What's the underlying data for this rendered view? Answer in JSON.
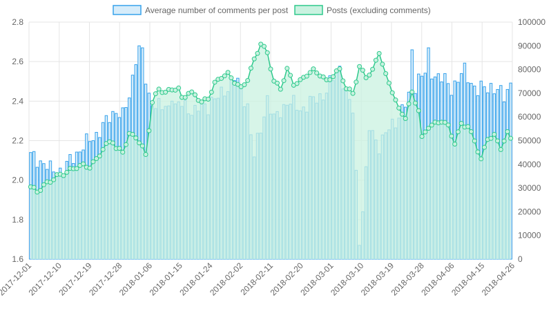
{
  "chart_data": {
    "type": "bar",
    "legend": {
      "placement": "top-center",
      "entries": [
        "Average number of comments per post",
        "Posts (excluding comments)"
      ]
    },
    "colors": {
      "bar_fill": "#d6ecfa",
      "bar_stroke": "#36a2eb",
      "line_stroke": "#2ec98c",
      "line_fill": "#c9f2e0",
      "grid": "#e5e5e5"
    },
    "x_tick_labels": [
      "2017-12-01",
      "2017-12-10",
      "2017-12-19",
      "2017-12-28",
      "2018-01-06",
      "2018-01-15",
      "2018-01-24",
      "2018-02-02",
      "2018-02-11",
      "2018-02-20",
      "2018-03-01",
      "2018-03-10",
      "2018-03-19",
      "2018-03-28",
      "2018-04-06",
      "2018-04-15",
      "2018-04-26"
    ],
    "y_left": {
      "ylim": [
        1.6,
        2.8
      ],
      "ticks": [
        "1.6",
        "1.8",
        "2.0",
        "2.2",
        "2.4",
        "2.6",
        "2.8"
      ]
    },
    "y_right": {
      "ylim": [
        0,
        100000
      ],
      "ticks": [
        "0",
        "10000",
        "20000",
        "30000",
        "40000",
        "50000",
        "60000",
        "70000",
        "80000",
        "90000",
        "100000"
      ]
    },
    "grid": true,
    "n_days": 147,
    "avg_anchors": [
      [
        0,
        2.12
      ],
      [
        3,
        2.1
      ],
      [
        6,
        2.05
      ],
      [
        10,
        2.05
      ],
      [
        14,
        2.14
      ],
      [
        18,
        2.2
      ],
      [
        22,
        2.27
      ],
      [
        26,
        2.36
      ],
      [
        28,
        2.32
      ],
      [
        30,
        2.42
      ],
      [
        32,
        2.63
      ],
      [
        34,
        2.58
      ],
      [
        36,
        2.42
      ],
      [
        40,
        2.36
      ],
      [
        46,
        2.38
      ],
      [
        50,
        2.35
      ],
      [
        54,
        2.38
      ],
      [
        58,
        2.43
      ],
      [
        62,
        2.52
      ],
      [
        66,
        2.38
      ],
      [
        68,
        2.12
      ],
      [
        70,
        2.26
      ],
      [
        72,
        2.42
      ],
      [
        74,
        2.3
      ],
      [
        78,
        2.4
      ],
      [
        82,
        2.36
      ],
      [
        86,
        2.4
      ],
      [
        90,
        2.45
      ],
      [
        94,
        2.58
      ],
      [
        96,
        2.43
      ],
      [
        98,
        2.35
      ],
      [
        100,
        1.71
      ],
      [
        101,
        1.8
      ],
      [
        103,
        2.26
      ],
      [
        106,
        2.18
      ],
      [
        110,
        2.28
      ],
      [
        114,
        2.38
      ],
      [
        118,
        2.52
      ],
      [
        122,
        2.55
      ],
      [
        126,
        2.5
      ],
      [
        128,
        2.47
      ],
      [
        132,
        2.55
      ],
      [
        136,
        2.45
      ],
      [
        140,
        2.48
      ],
      [
        144,
        2.42
      ],
      [
        146,
        2.5
      ]
    ],
    "avg_overrides": [
      [
        33,
        2.68
      ],
      [
        34,
        2.67
      ],
      [
        43,
        2.4
      ],
      [
        55,
        2.42
      ],
      [
        67,
        2.23
      ],
      [
        100,
        1.67
      ],
      [
        101,
        1.84
      ],
      [
        116,
        2.66
      ],
      [
        121,
        2.67
      ]
    ],
    "posts_anchors": [
      [
        0,
        30500
      ],
      [
        2,
        28500
      ],
      [
        4,
        31000
      ],
      [
        6,
        33000
      ],
      [
        8,
        35000
      ],
      [
        10,
        36000
      ],
      [
        12,
        37500
      ],
      [
        14,
        39000
      ],
      [
        16,
        39500
      ],
      [
        18,
        39000
      ],
      [
        20,
        42000
      ],
      [
        22,
        46500
      ],
      [
        24,
        49500
      ],
      [
        25,
        49800
      ],
      [
        26,
        46500
      ],
      [
        28,
        45500
      ],
      [
        30,
        52500
      ],
      [
        32,
        51800
      ],
      [
        34,
        47000
      ],
      [
        35,
        44000
      ],
      [
        36,
        55000
      ],
      [
        37,
        66000
      ],
      [
        39,
        72000
      ],
      [
        41,
        70000
      ],
      [
        43,
        72000
      ],
      [
        45,
        71500
      ],
      [
        46,
        68000
      ],
      [
        48,
        70000
      ],
      [
        50,
        69500
      ],
      [
        52,
        66000
      ],
      [
        54,
        68000
      ],
      [
        56,
        74000
      ],
      [
        58,
        77000
      ],
      [
        60,
        78000
      ],
      [
        62,
        75000
      ],
      [
        64,
        72000
      ],
      [
        66,
        76000
      ],
      [
        68,
        84000
      ],
      [
        70,
        91000
      ],
      [
        72,
        87000
      ],
      [
        74,
        75000
      ],
      [
        76,
        72000
      ],
      [
        78,
        80000
      ],
      [
        80,
        74000
      ],
      [
        82,
        75000
      ],
      [
        84,
        78000
      ],
      [
        86,
        79500
      ],
      [
        88,
        78000
      ],
      [
        90,
        75000
      ],
      [
        92,
        77500
      ],
      [
        94,
        80000
      ],
      [
        96,
        72000
      ],
      [
        98,
        70000
      ],
      [
        100,
        81000
      ],
      [
        102,
        77000
      ],
      [
        104,
        79500
      ],
      [
        106,
        87500
      ],
      [
        108,
        77500
      ],
      [
        110,
        71000
      ],
      [
        112,
        63000
      ],
      [
        114,
        60000
      ],
      [
        116,
        70000
      ],
      [
        118,
        63000
      ],
      [
        119,
        51000
      ],
      [
        121,
        56000
      ],
      [
        123,
        57000
      ],
      [
        125,
        58500
      ],
      [
        127,
        56000
      ],
      [
        129,
        49000
      ],
      [
        131,
        57000
      ],
      [
        133,
        56000
      ],
      [
        135,
        50000
      ],
      [
        137,
        42000
      ],
      [
        139,
        51000
      ],
      [
        141,
        52000
      ],
      [
        143,
        47000
      ],
      [
        145,
        53000
      ],
      [
        146,
        51000
      ]
    ]
  }
}
